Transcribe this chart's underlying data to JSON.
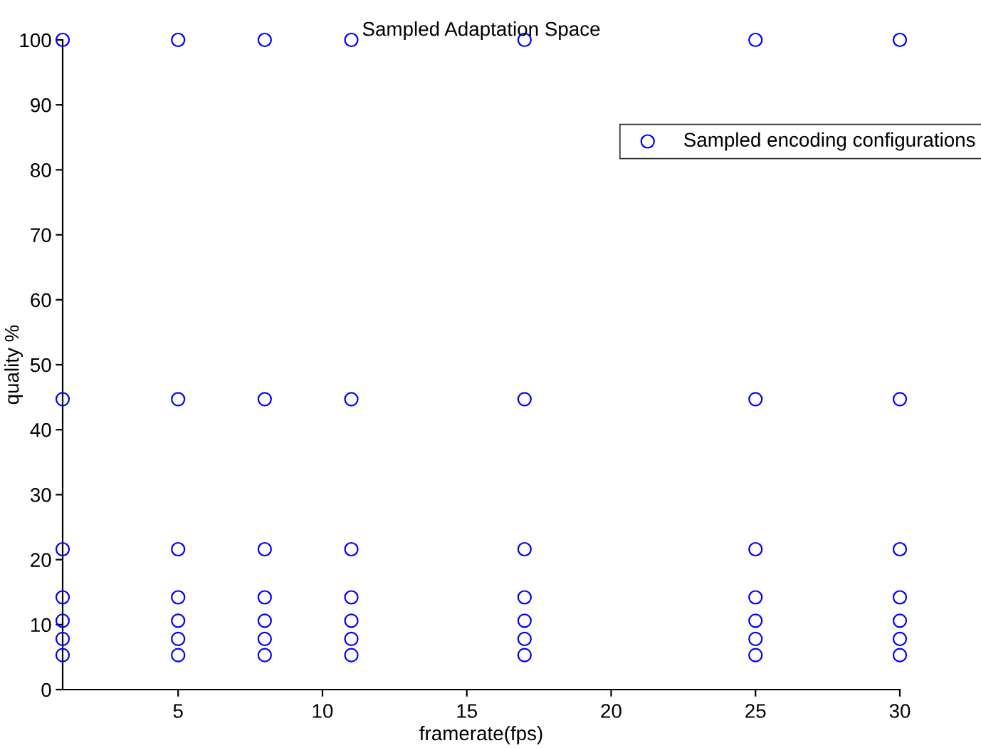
{
  "chart_data": {
    "type": "scatter",
    "title": "Sampled Adaptation Space",
    "xlabel": "framerate(fps)",
    "ylabel": "quality %",
    "x": [
      1,
      1,
      1,
      1,
      1,
      1,
      1,
      5,
      5,
      5,
      5,
      5,
      5,
      5,
      8,
      8,
      8,
      8,
      8,
      8,
      8,
      11,
      11,
      11,
      11,
      11,
      11,
      11,
      17,
      17,
      17,
      17,
      17,
      17,
      17,
      25,
      25,
      25,
      25,
      25,
      25,
      25,
      30,
      30,
      30,
      30,
      30,
      30,
      30
    ],
    "series": [
      {
        "name": "Sampled encoding configurations",
        "color": "#0000ff",
        "values": [
          100,
          44.7,
          21.6,
          14.2,
          10.6,
          7.8,
          5.3,
          100,
          44.7,
          21.6,
          14.2,
          10.6,
          7.8,
          5.3,
          100,
          44.7,
          21.6,
          14.2,
          10.6,
          7.8,
          5.3,
          100,
          44.7,
          21.6,
          14.2,
          10.6,
          7.8,
          5.3,
          100,
          44.7,
          21.6,
          14.2,
          10.6,
          7.8,
          5.3,
          100,
          44.7,
          21.6,
          14.2,
          10.6,
          7.8,
          5.3,
          100,
          44.7,
          21.6,
          14.2,
          10.6,
          7.8,
          5.3
        ]
      }
    ],
    "xlim": [
      1,
      30
    ],
    "xticks": [
      5,
      10,
      15,
      20,
      25,
      30
    ],
    "ylim": [
      0,
      100
    ],
    "yticks": [
      0,
      10,
      20,
      30,
      40,
      50,
      60,
      70,
      80,
      90,
      100
    ],
    "marker": "circle",
    "legend": "top right",
    "grid": false
  }
}
